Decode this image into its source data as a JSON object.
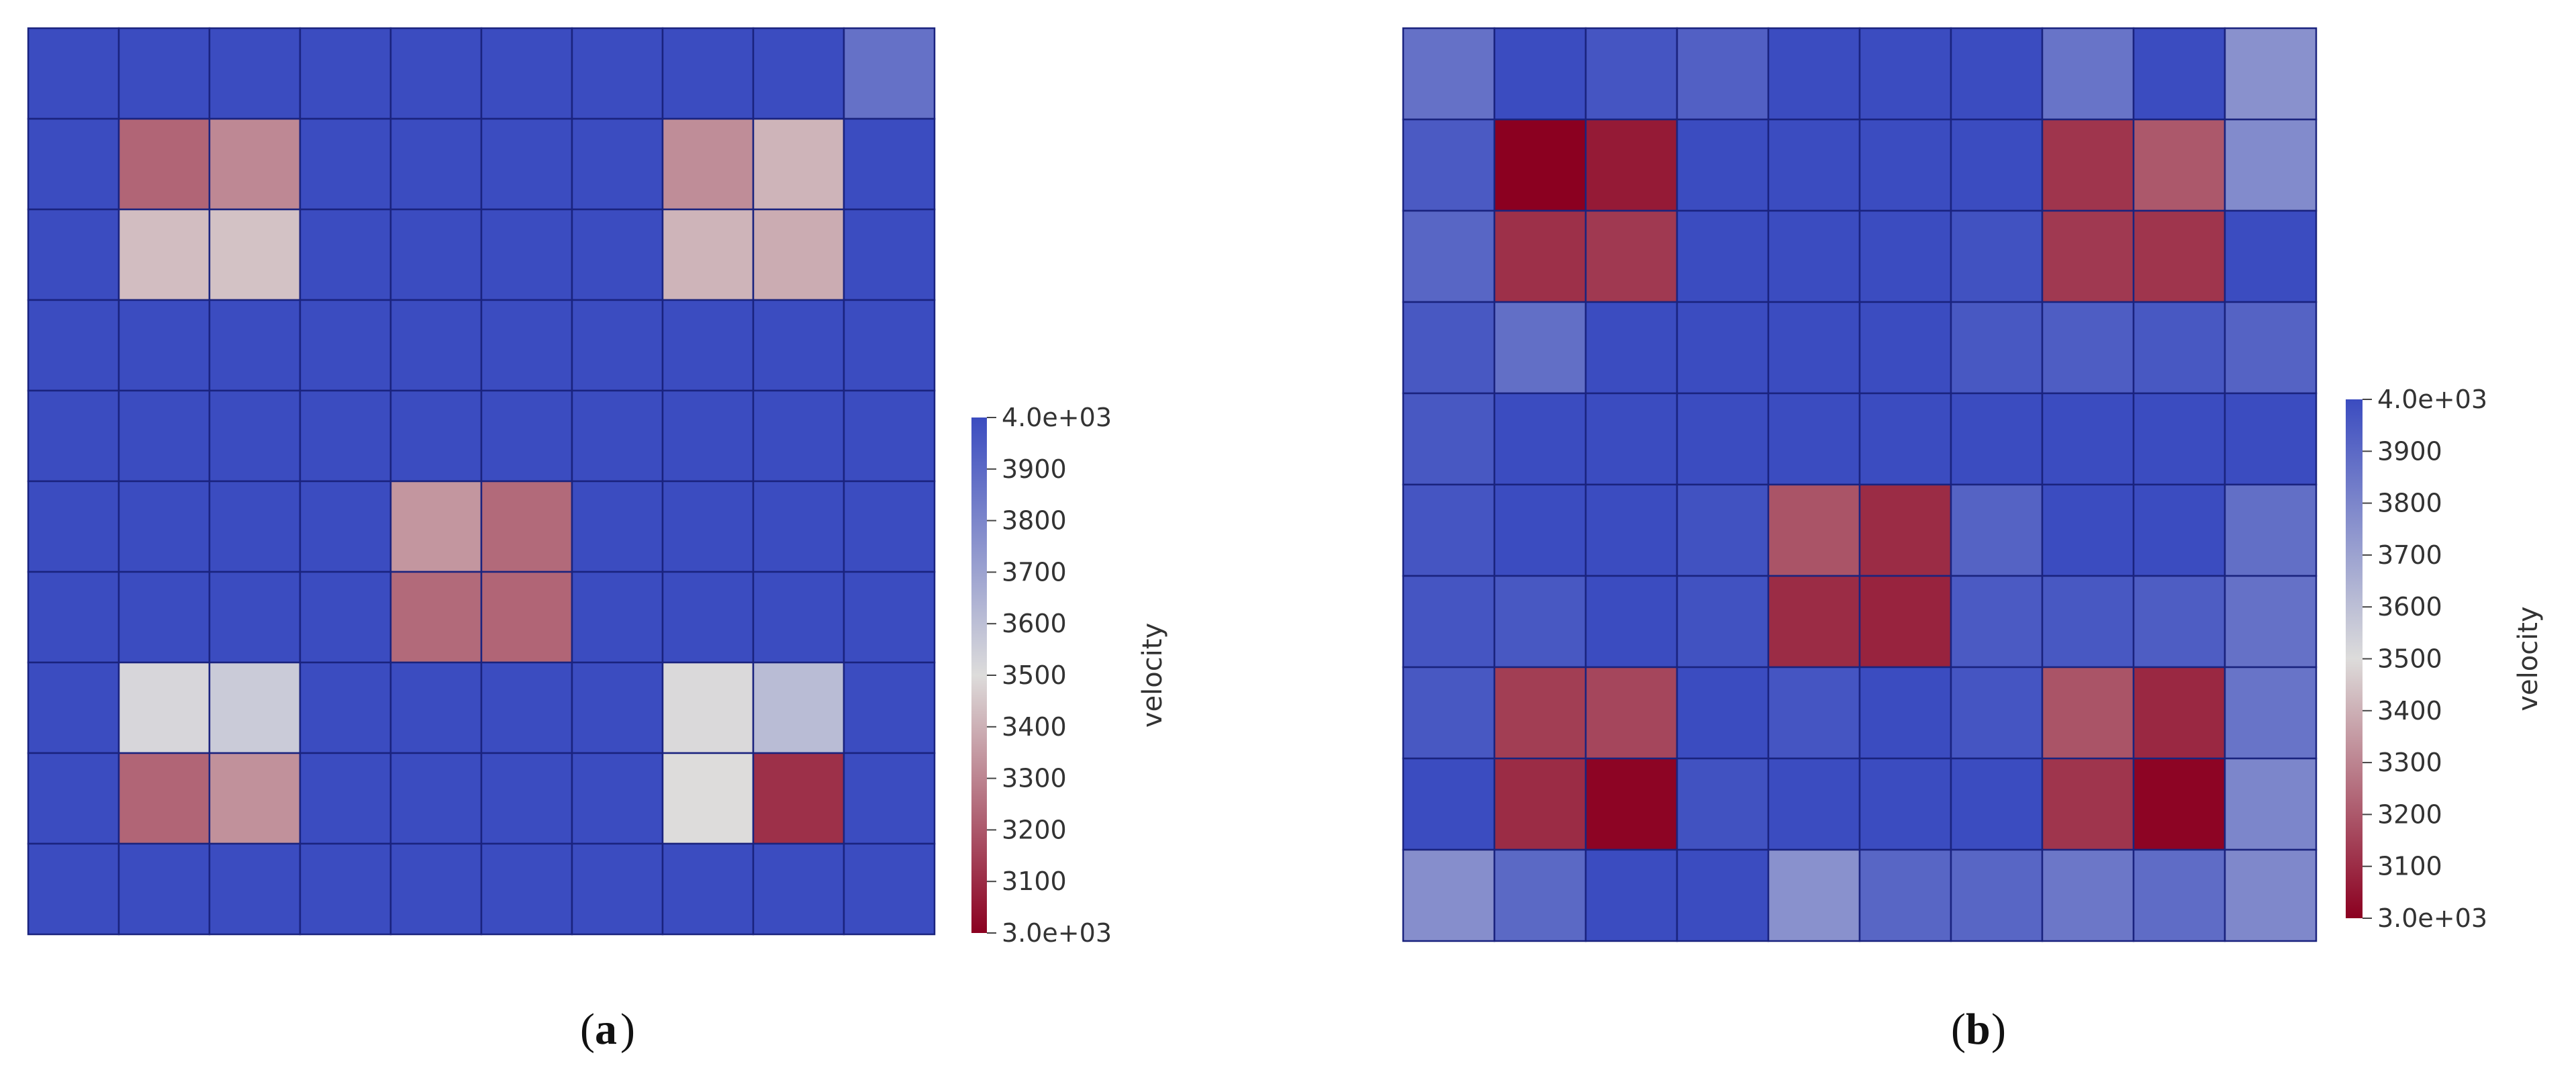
{
  "chart_data": [
    {
      "type": "heatmap",
      "label": "a",
      "colorbar": {
        "title": "velocity",
        "min_label": "3.0e+03",
        "max_label": "4.0e+03",
        "tick_labels": [
          "3100",
          "3200",
          "3300",
          "3400",
          "3500",
          "3600",
          "3700",
          "3800",
          "3900"
        ],
        "range": [
          3000,
          4000
        ],
        "colormap": [
          "#8b0020",
          "#dddcdb",
          "#3b4cc0"
        ]
      },
      "rows": 10,
      "cols": 10,
      "values": [
        [
          4000,
          4000,
          4000,
          4000,
          4000,
          4000,
          4000,
          4000,
          4000,
          3870
        ],
        [
          4000,
          3230,
          3310,
          4000,
          4000,
          4000,
          4000,
          3320,
          3410,
          4000
        ],
        [
          4000,
          3430,
          3440,
          4000,
          4000,
          4000,
          4000,
          3410,
          3390,
          4000
        ],
        [
          4000,
          4000,
          4000,
          4000,
          4000,
          4000,
          4000,
          4000,
          4000,
          4000
        ],
        [
          4000,
          4000,
          4000,
          4000,
          4000,
          4000,
          4000,
          4000,
          4000,
          4000
        ],
        [
          4000,
          4000,
          4000,
          4000,
          3340,
          3240,
          4000,
          4000,
          4000,
          4000
        ],
        [
          4000,
          4000,
          4000,
          4000,
          3240,
          3230,
          4000,
          4000,
          4000,
          4000
        ],
        [
          4000,
          3520,
          3560,
          4000,
          4000,
          4000,
          4000,
          3510,
          3610,
          4000
        ],
        [
          4000,
          3230,
          3330,
          4000,
          4000,
          4000,
          4000,
          3500,
          3110,
          4000
        ],
        [
          4000,
          4000,
          4000,
          4000,
          4000,
          4000,
          4000,
          4000,
          4000,
          4000
        ]
      ]
    },
    {
      "type": "heatmap",
      "label": "b",
      "colorbar": {
        "title": "velocity",
        "min_label": "3.0e+03",
        "max_label": "4.0e+03",
        "tick_labels": [
          "3100",
          "3200",
          "3300",
          "3400",
          "3500",
          "3600",
          "3700",
          "3800",
          "3900"
        ],
        "range": [
          3000,
          4000
        ],
        "colormap": [
          "#8b0020",
          "#dddcdb",
          "#3b4cc0"
        ]
      },
      "rows": 10,
      "cols": 10,
      "values": [
        [
          3870,
          4000,
          3970,
          3930,
          4000,
          4000,
          4000,
          3860,
          4000,
          3760
        ],
        [
          3950,
          3000,
          3060,
          4000,
          4000,
          4000,
          4000,
          3120,
          3200,
          3780
        ],
        [
          3910,
          3110,
          3130,
          4000,
          4000,
          4000,
          3980,
          3130,
          3120,
          4000
        ],
        [
          3960,
          3880,
          4000,
          4000,
          4000,
          4000,
          3960,
          3940,
          3960,
          3920
        ],
        [
          3960,
          4000,
          4000,
          4000,
          4000,
          4000,
          4000,
          4000,
          4000,
          4000
        ],
        [
          3970,
          4000,
          4000,
          3980,
          3190,
          3100,
          3920,
          4000,
          4000,
          3880
        ],
        [
          3970,
          3960,
          4000,
          3980,
          3100,
          3080,
          3950,
          3960,
          3940,
          3870
        ],
        [
          3960,
          3140,
          3160,
          4000,
          3970,
          4000,
          3970,
          3190,
          3090,
          3860
        ],
        [
          4000,
          3100,
          3010,
          3980,
          4000,
          4000,
          4000,
          3120,
          3010,
          3800
        ],
        [
          3770,
          3900,
          4000,
          4000,
          3760,
          3910,
          3910,
          3850,
          3890,
          3790
        ]
      ]
    }
  ]
}
